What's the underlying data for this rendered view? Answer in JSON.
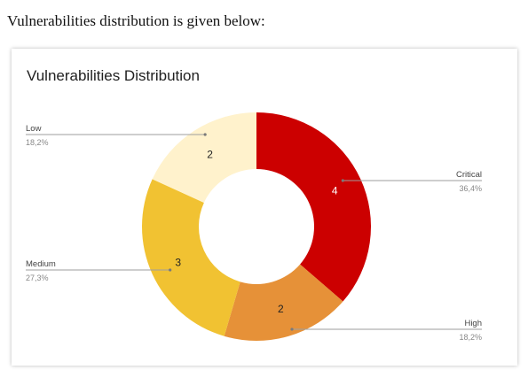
{
  "document": {
    "intro_text": "Vulnerabilities distribution is given below:"
  },
  "chart_data": {
    "type": "pie",
    "donut": true,
    "title": "Vulnerabilities Distribution",
    "categories": [
      "Critical",
      "High",
      "Medium",
      "Low"
    ],
    "values": [
      4,
      2,
      3,
      2
    ],
    "percent_labels": [
      "36,4%",
      "18,2%",
      "27,3%",
      "18,2%"
    ],
    "colors": [
      "#cc0000",
      "#e69138",
      "#f1c232",
      "#fff2cc"
    ],
    "value_label_colors": [
      "#ffffff",
      "#222222",
      "#222222",
      "#222222"
    ],
    "legend": "labeled-lines"
  }
}
